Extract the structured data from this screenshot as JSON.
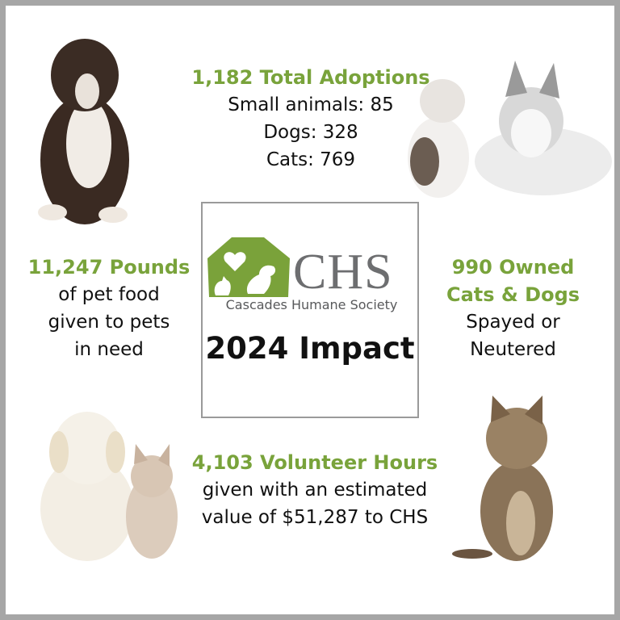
{
  "colors": {
    "accent": "#79a33b",
    "border": "#a6a6a6",
    "logo_gray": "#6d6e70"
  },
  "logo": {
    "mark": "CHS",
    "name": "Cascades Humane Society"
  },
  "center": {
    "title": "2024 Impact"
  },
  "adoptions": {
    "headline": "1,182 Total Adoptions",
    "lines": [
      "Small animals: 85",
      "Dogs: 328",
      "Cats: 769"
    ]
  },
  "food": {
    "headline": "11,247 Pounds",
    "lines": [
      "of pet food",
      "given to pets",
      "in need"
    ]
  },
  "spay": {
    "headline_lines": [
      "990 Owned",
      "Cats & Dogs"
    ],
    "lines": [
      "Spayed or",
      "Neutered"
    ]
  },
  "volunteer": {
    "headline": "4,103 Volunteer Hours",
    "lines": [
      "given with an estimated",
      "value of $51,287 to CHS"
    ]
  },
  "images": [
    "brindle-puppy-photo",
    "cat-and-husky-photo",
    "golden-puppy-and-kitten-photo",
    "tabby-cat-photo"
  ]
}
